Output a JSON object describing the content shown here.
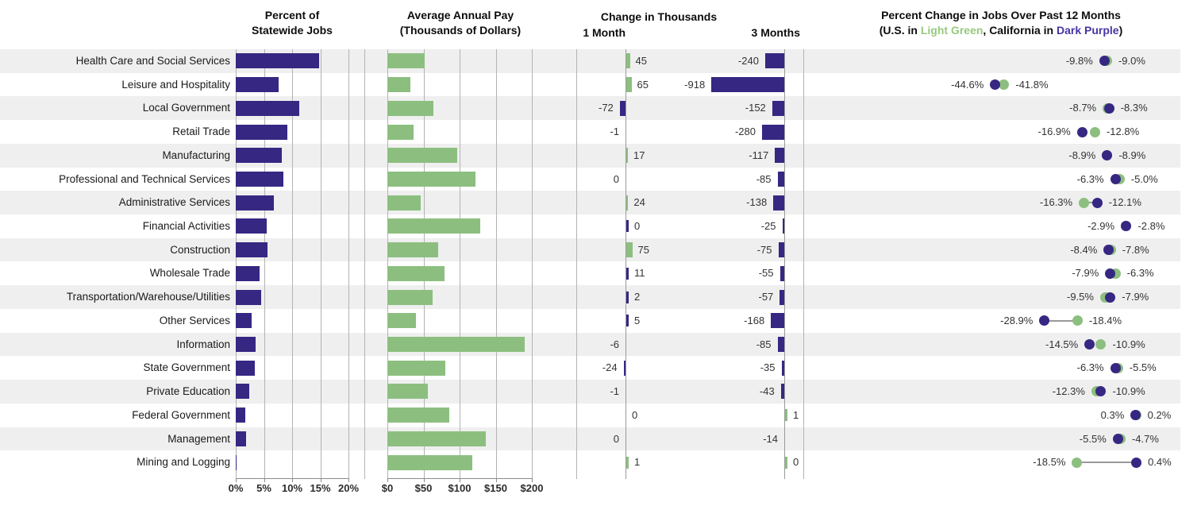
{
  "panels": {
    "jobs": {
      "title_line1": "Percent of",
      "title_line2": "Statewide Jobs",
      "ticks": [
        "0%",
        "5%",
        "10%",
        "15%",
        "20%"
      ]
    },
    "pay": {
      "title_line1": "Average Annual Pay",
      "title_line2": "(Thousands of Dollars)",
      "ticks": [
        "$0",
        "$50",
        "$100",
        "$150",
        "$200"
      ]
    },
    "change": {
      "title": "Change in Thousands",
      "col1": "1 Month",
      "col2": "3 Months"
    },
    "pct12": {
      "title": "Percent Change in Jobs Over Past 12 Months",
      "sub_prefix": "(U.S. in ",
      "sub_green": "Light Green",
      "sub_mid": ", California in ",
      "sub_purple": "Dark Purple",
      "sub_suffix": ")"
    }
  },
  "colors": {
    "purple": "#362783",
    "green": "#8CBF7F",
    "band_gray": "#EFEFEF",
    "band_white": "#FFFFFF",
    "grid": "#B3B3B3",
    "connector": "#999999",
    "subtitle_green_text": "#98C97F",
    "subtitle_purple_text": "#4636A3",
    "value_text": "#333333",
    "label_text": "#1A1A1A"
  },
  "rows": [
    {
      "label": "Health Care and Social Services",
      "jobs": 14.8,
      "pay": 52,
      "m1": {
        "v": 45,
        "t": "45",
        "c": "g",
        "bar": true,
        "side": "r"
      },
      "m3": {
        "v": -240,
        "t": "-240",
        "c": "p",
        "bar": true,
        "side": "l"
      },
      "pct": {
        "us": -9.0,
        "ca": -9.8,
        "left": "-9.8%",
        "right": "-9.0%",
        "line": false
      }
    },
    {
      "label": "Leisure and Hospitality",
      "jobs": 7.6,
      "pay": 32,
      "m1": {
        "v": 65,
        "t": "65",
        "c": "g",
        "bar": true,
        "side": "r"
      },
      "m3": {
        "v": -918,
        "t": "-918",
        "c": "p",
        "bar": true,
        "side": "l"
      },
      "pct": {
        "us": -41.8,
        "ca": -44.6,
        "left": "-44.6%",
        "right": "-41.8%",
        "line": false
      }
    },
    {
      "label": "Local Government",
      "jobs": 11.3,
      "pay": 64,
      "m1": {
        "v": -72,
        "t": "-72",
        "c": "p",
        "bar": true,
        "side": "l"
      },
      "m3": {
        "v": -152,
        "t": "-152",
        "c": "p",
        "bar": true,
        "side": "l"
      },
      "pct": {
        "us": -8.7,
        "ca": -8.3,
        "left": "-8.7%",
        "right": "-8.3%",
        "line": false
      }
    },
    {
      "label": "Retail Trade",
      "jobs": 9.2,
      "pay": 36,
      "m1": {
        "v": -1,
        "t": "-1",
        "c": "p",
        "bar": false,
        "side": "l"
      },
      "m3": {
        "v": -280,
        "t": "-280",
        "c": "p",
        "bar": true,
        "side": "l"
      },
      "pct": {
        "us": -12.8,
        "ca": -16.9,
        "left": "-16.9%",
        "right": "-12.8%",
        "line": false
      }
    },
    {
      "label": "Manufacturing",
      "jobs": 8.1,
      "pay": 97,
      "m1": {
        "v": 17,
        "t": "17",
        "c": "g",
        "bar": true,
        "side": "r"
      },
      "m3": {
        "v": -117,
        "t": "-117",
        "c": "p",
        "bar": true,
        "side": "l"
      },
      "pct": {
        "us": -8.9,
        "ca": -8.9,
        "left": "-8.9%",
        "right": "-8.9%",
        "line": false
      }
    },
    {
      "label": "Professional and Technical Services",
      "jobs": 8.5,
      "pay": 122,
      "m1": {
        "v": 0,
        "t": "0",
        "c": "p",
        "bar": false,
        "side": "l"
      },
      "m3": {
        "v": -85,
        "t": "-85",
        "c": "p",
        "bar": true,
        "side": "l"
      },
      "pct": {
        "us": -5.0,
        "ca": -6.3,
        "left": "-6.3%",
        "right": "-5.0%",
        "line": false
      }
    },
    {
      "label": "Administrative Services",
      "jobs": 6.8,
      "pay": 46,
      "m1": {
        "v": 24,
        "t": "24",
        "c": "g",
        "bar": true,
        "side": "r"
      },
      "m3": {
        "v": -138,
        "t": "-138",
        "c": "p",
        "bar": true,
        "side": "l"
      },
      "pct": {
        "us": -16.3,
        "ca": -12.1,
        "left": "-16.3%",
        "right": "-12.1%",
        "line": true
      }
    },
    {
      "label": "Financial Activities",
      "jobs": 5.5,
      "pay": 129,
      "m1": {
        "v": 0,
        "t": "0",
        "c": "p",
        "bar": true,
        "side": "r"
      },
      "m3": {
        "v": -25,
        "t": "-25",
        "c": "p",
        "bar": true,
        "side": "l"
      },
      "pct": {
        "us": -2.8,
        "ca": -2.9,
        "left": "-2.9%",
        "right": "-2.8%",
        "line": false
      }
    },
    {
      "label": "Construction",
      "jobs": 5.6,
      "pay": 70,
      "m1": {
        "v": 75,
        "t": "75",
        "c": "g",
        "bar": true,
        "side": "r"
      },
      "m3": {
        "v": -75,
        "t": "-75",
        "c": "p",
        "bar": true,
        "side": "l"
      },
      "pct": {
        "us": -7.8,
        "ca": -8.4,
        "left": "-8.4%",
        "right": "-7.8%",
        "line": false
      }
    },
    {
      "label": "Wholesale Trade",
      "jobs": 4.2,
      "pay": 79,
      "m1": {
        "v": 11,
        "t": "11",
        "c": "p",
        "bar": true,
        "side": "r"
      },
      "m3": {
        "v": -55,
        "t": "-55",
        "c": "p",
        "bar": true,
        "side": "l"
      },
      "pct": {
        "us": -6.3,
        "ca": -7.9,
        "left": "-7.9%",
        "right": "-6.3%",
        "line": false
      }
    },
    {
      "label": "Transportation/Warehouse/Utilities",
      "jobs": 4.5,
      "pay": 63,
      "m1": {
        "v": 2,
        "t": "2",
        "c": "p",
        "bar": true,
        "side": "r"
      },
      "m3": {
        "v": -57,
        "t": "-57",
        "c": "p",
        "bar": true,
        "side": "l"
      },
      "pct": {
        "us": -9.5,
        "ca": -7.9,
        "left": "-9.5%",
        "right": "-7.9%",
        "line": false
      }
    },
    {
      "label": "Other Services",
      "jobs": 2.8,
      "pay": 40,
      "m1": {
        "v": 5,
        "t": "5",
        "c": "p",
        "bar": true,
        "side": "r"
      },
      "m3": {
        "v": -168,
        "t": "-168",
        "c": "p",
        "bar": true,
        "side": "l"
      },
      "pct": {
        "us": -18.4,
        "ca": -28.9,
        "left": "-28.9%",
        "right": "-18.4%",
        "line": true
      }
    },
    {
      "label": "Information",
      "jobs": 3.5,
      "pay": 190,
      "m1": {
        "v": -6,
        "t": "-6",
        "c": "p",
        "bar": false,
        "side": "l"
      },
      "m3": {
        "v": -85,
        "t": "-85",
        "c": "p",
        "bar": true,
        "side": "l"
      },
      "pct": {
        "us": -10.9,
        "ca": -14.5,
        "left": "-14.5%",
        "right": "-10.9%",
        "line": false
      }
    },
    {
      "label": "State Government",
      "jobs": 3.4,
      "pay": 80,
      "m1": {
        "v": -24,
        "t": "-24",
        "c": "p",
        "bar": true,
        "side": "l"
      },
      "m3": {
        "v": -35,
        "t": "-35",
        "c": "p",
        "bar": true,
        "side": "l"
      },
      "pct": {
        "us": -5.5,
        "ca": -6.3,
        "left": "-6.3%",
        "right": "-5.5%",
        "line": false
      }
    },
    {
      "label": "Private Education",
      "jobs": 2.4,
      "pay": 56,
      "m1": {
        "v": -1,
        "t": "-1",
        "c": "p",
        "bar": false,
        "side": "l"
      },
      "m3": {
        "v": -43,
        "t": "-43",
        "c": "p",
        "bar": true,
        "side": "l"
      },
      "pct": {
        "us": -12.3,
        "ca": -10.9,
        "left": "-12.3%",
        "right": "-10.9%",
        "line": false
      }
    },
    {
      "label": "Federal Government",
      "jobs": 1.7,
      "pay": 86,
      "m1": {
        "v": 0,
        "t": "0",
        "c": "g",
        "bar": false,
        "side": "r"
      },
      "m3": {
        "v": 1,
        "t": "1",
        "c": "g",
        "bar": true,
        "side": "r"
      },
      "pct": {
        "us": 0.3,
        "ca": 0.2,
        "left": "0.3%",
        "right": "0.2%",
        "line": false
      }
    },
    {
      "label": "Management",
      "jobs": 1.8,
      "pay": 136,
      "m1": {
        "v": 0,
        "t": "0",
        "c": "p",
        "bar": false,
        "side": "l"
      },
      "m3": {
        "v": -14,
        "t": "-14",
        "c": "p",
        "bar": false,
        "side": "l"
      },
      "pct": {
        "us": -4.7,
        "ca": -5.5,
        "left": "-5.5%",
        "right": "-4.7%",
        "line": false
      }
    },
    {
      "label": "Mining and Logging",
      "jobs": 0.2,
      "pay": 118,
      "m1": {
        "v": 1,
        "t": "1",
        "c": "g",
        "bar": true,
        "side": "r"
      },
      "m3": {
        "v": 0,
        "t": "0",
        "c": "g",
        "bar": true,
        "side": "r"
      },
      "pct": {
        "us": -18.5,
        "ca": 0.4,
        "left": "-18.5%",
        "right": "0.4%",
        "line": true
      }
    }
  ],
  "chart_data": [
    {
      "type": "bar",
      "orientation": "horizontal",
      "title": "Percent of Statewide Jobs",
      "categories": [
        "Health Care and Social Services",
        "Leisure and Hospitality",
        "Local Government",
        "Retail Trade",
        "Manufacturing",
        "Professional and Technical Services",
        "Administrative Services",
        "Financial Activities",
        "Construction",
        "Wholesale Trade",
        "Transportation/Warehouse/Utilities",
        "Other Services",
        "Information",
        "State Government",
        "Private Education",
        "Federal Government",
        "Management",
        "Mining and Logging"
      ],
      "values": [
        14.8,
        7.6,
        11.3,
        9.2,
        8.1,
        8.5,
        6.8,
        5.5,
        5.6,
        4.2,
        4.5,
        2.8,
        3.5,
        3.4,
        2.4,
        1.7,
        1.8,
        0.2
      ],
      "xlim": [
        0,
        20
      ],
      "tick_labels": [
        "0%",
        "5%",
        "10%",
        "15%",
        "20%"
      ],
      "grid": true,
      "bar_color": "#362783"
    },
    {
      "type": "bar",
      "orientation": "horizontal",
      "title": "Average Annual Pay (Thousands of Dollars)",
      "values": [
        52,
        32,
        64,
        36,
        97,
        122,
        46,
        129,
        70,
        79,
        63,
        40,
        190,
        80,
        56,
        86,
        136,
        118
      ],
      "xlim": [
        0,
        200
      ],
      "tick_labels": [
        "$0",
        "$50",
        "$100",
        "$150",
        "$200"
      ],
      "grid": true,
      "bar_color": "#8CBF7F"
    },
    {
      "type": "bar",
      "orientation": "horizontal",
      "title": "Change in Thousands",
      "series": [
        {
          "name": "1 Month",
          "values": [
            45,
            65,
            -72,
            -1,
            17,
            0,
            24,
            0,
            75,
            11,
            2,
            5,
            -6,
            -24,
            -1,
            0,
            0,
            1
          ]
        },
        {
          "name": "3 Months",
          "values": [
            -240,
            -918,
            -152,
            -280,
            -117,
            -85,
            -138,
            -25,
            -75,
            -55,
            -57,
            -168,
            -85,
            -35,
            -43,
            1,
            -14,
            0
          ]
        }
      ]
    },
    {
      "type": "scatter",
      "title": "Percent Change in Jobs Over Past 12 Months",
      "legend": {
        "U.S.": "Light Green",
        "California": "Dark Purple"
      },
      "series": [
        {
          "name": "U.S.",
          "color": "#8CBF7F",
          "values": [
            -9.0,
            -41.8,
            -8.7,
            -12.8,
            -8.9,
            -5.0,
            -16.3,
            -2.8,
            -7.8,
            -6.3,
            -9.5,
            -18.4,
            -10.9,
            -5.5,
            -12.3,
            0.3,
            -4.7,
            -18.5
          ]
        },
        {
          "name": "California",
          "color": "#362783",
          "values": [
            -9.8,
            -44.6,
            -8.3,
            -16.9,
            -8.9,
            -6.3,
            -12.1,
            -2.9,
            -8.4,
            -7.9,
            -7.9,
            -28.9,
            -14.5,
            -6.3,
            -10.9,
            0.2,
            -5.5,
            0.4
          ]
        }
      ]
    }
  ]
}
